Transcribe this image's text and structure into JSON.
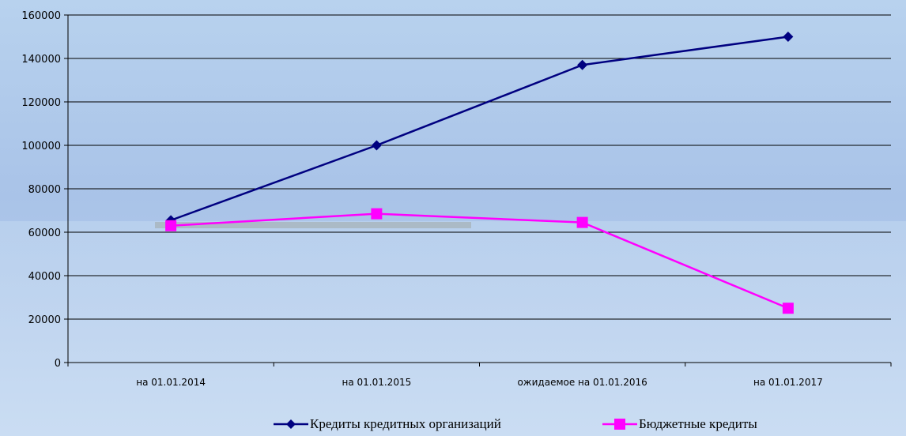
{
  "chart_data": {
    "type": "line",
    "categories": [
      "на 01.01.2014",
      "на 01.01.2015",
      "ожидаемое на 01.01.2016",
      "на 01.01.2017"
    ],
    "series": [
      {
        "name": "Кредиты кредитных организаций",
        "values": [
          65500,
          100000,
          137000,
          150000
        ],
        "color": "#000080",
        "marker": "diamond"
      },
      {
        "name": "Бюджетные кредиты",
        "values": [
          63000,
          68500,
          64500,
          25000
        ],
        "color": "#ff00ff",
        "marker": "square"
      }
    ],
    "ylim": [
      0,
      160000
    ],
    "yticks": [
      "0",
      "20000",
      "40000",
      "60000",
      "80000",
      "100000",
      "120000",
      "140000",
      "160000"
    ],
    "grid": true,
    "legend_position": "bottom"
  }
}
